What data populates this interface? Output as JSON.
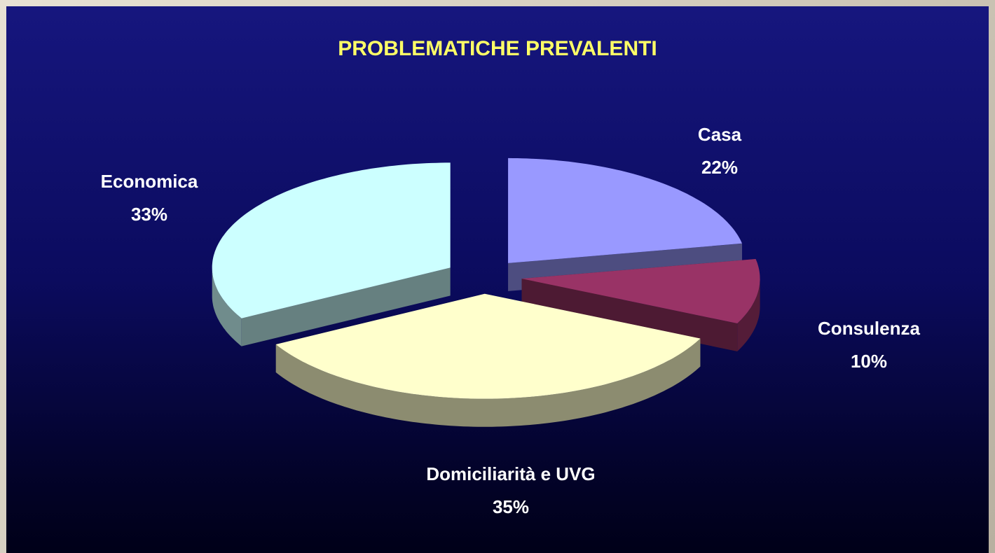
{
  "chart_data": {
    "type": "pie",
    "title": "PROBLEMATICHE PREVALENTI",
    "categories": [
      "Casa",
      "Consulenza",
      "Domiciliarità e UVG",
      "Economica"
    ],
    "values": [
      22,
      10,
      35,
      33
    ],
    "value_labels": [
      "22%",
      "10%",
      "35%",
      "33%"
    ],
    "colors": [
      "#9999ff",
      "#993366",
      "#ffffcc",
      "#ccffff"
    ]
  }
}
